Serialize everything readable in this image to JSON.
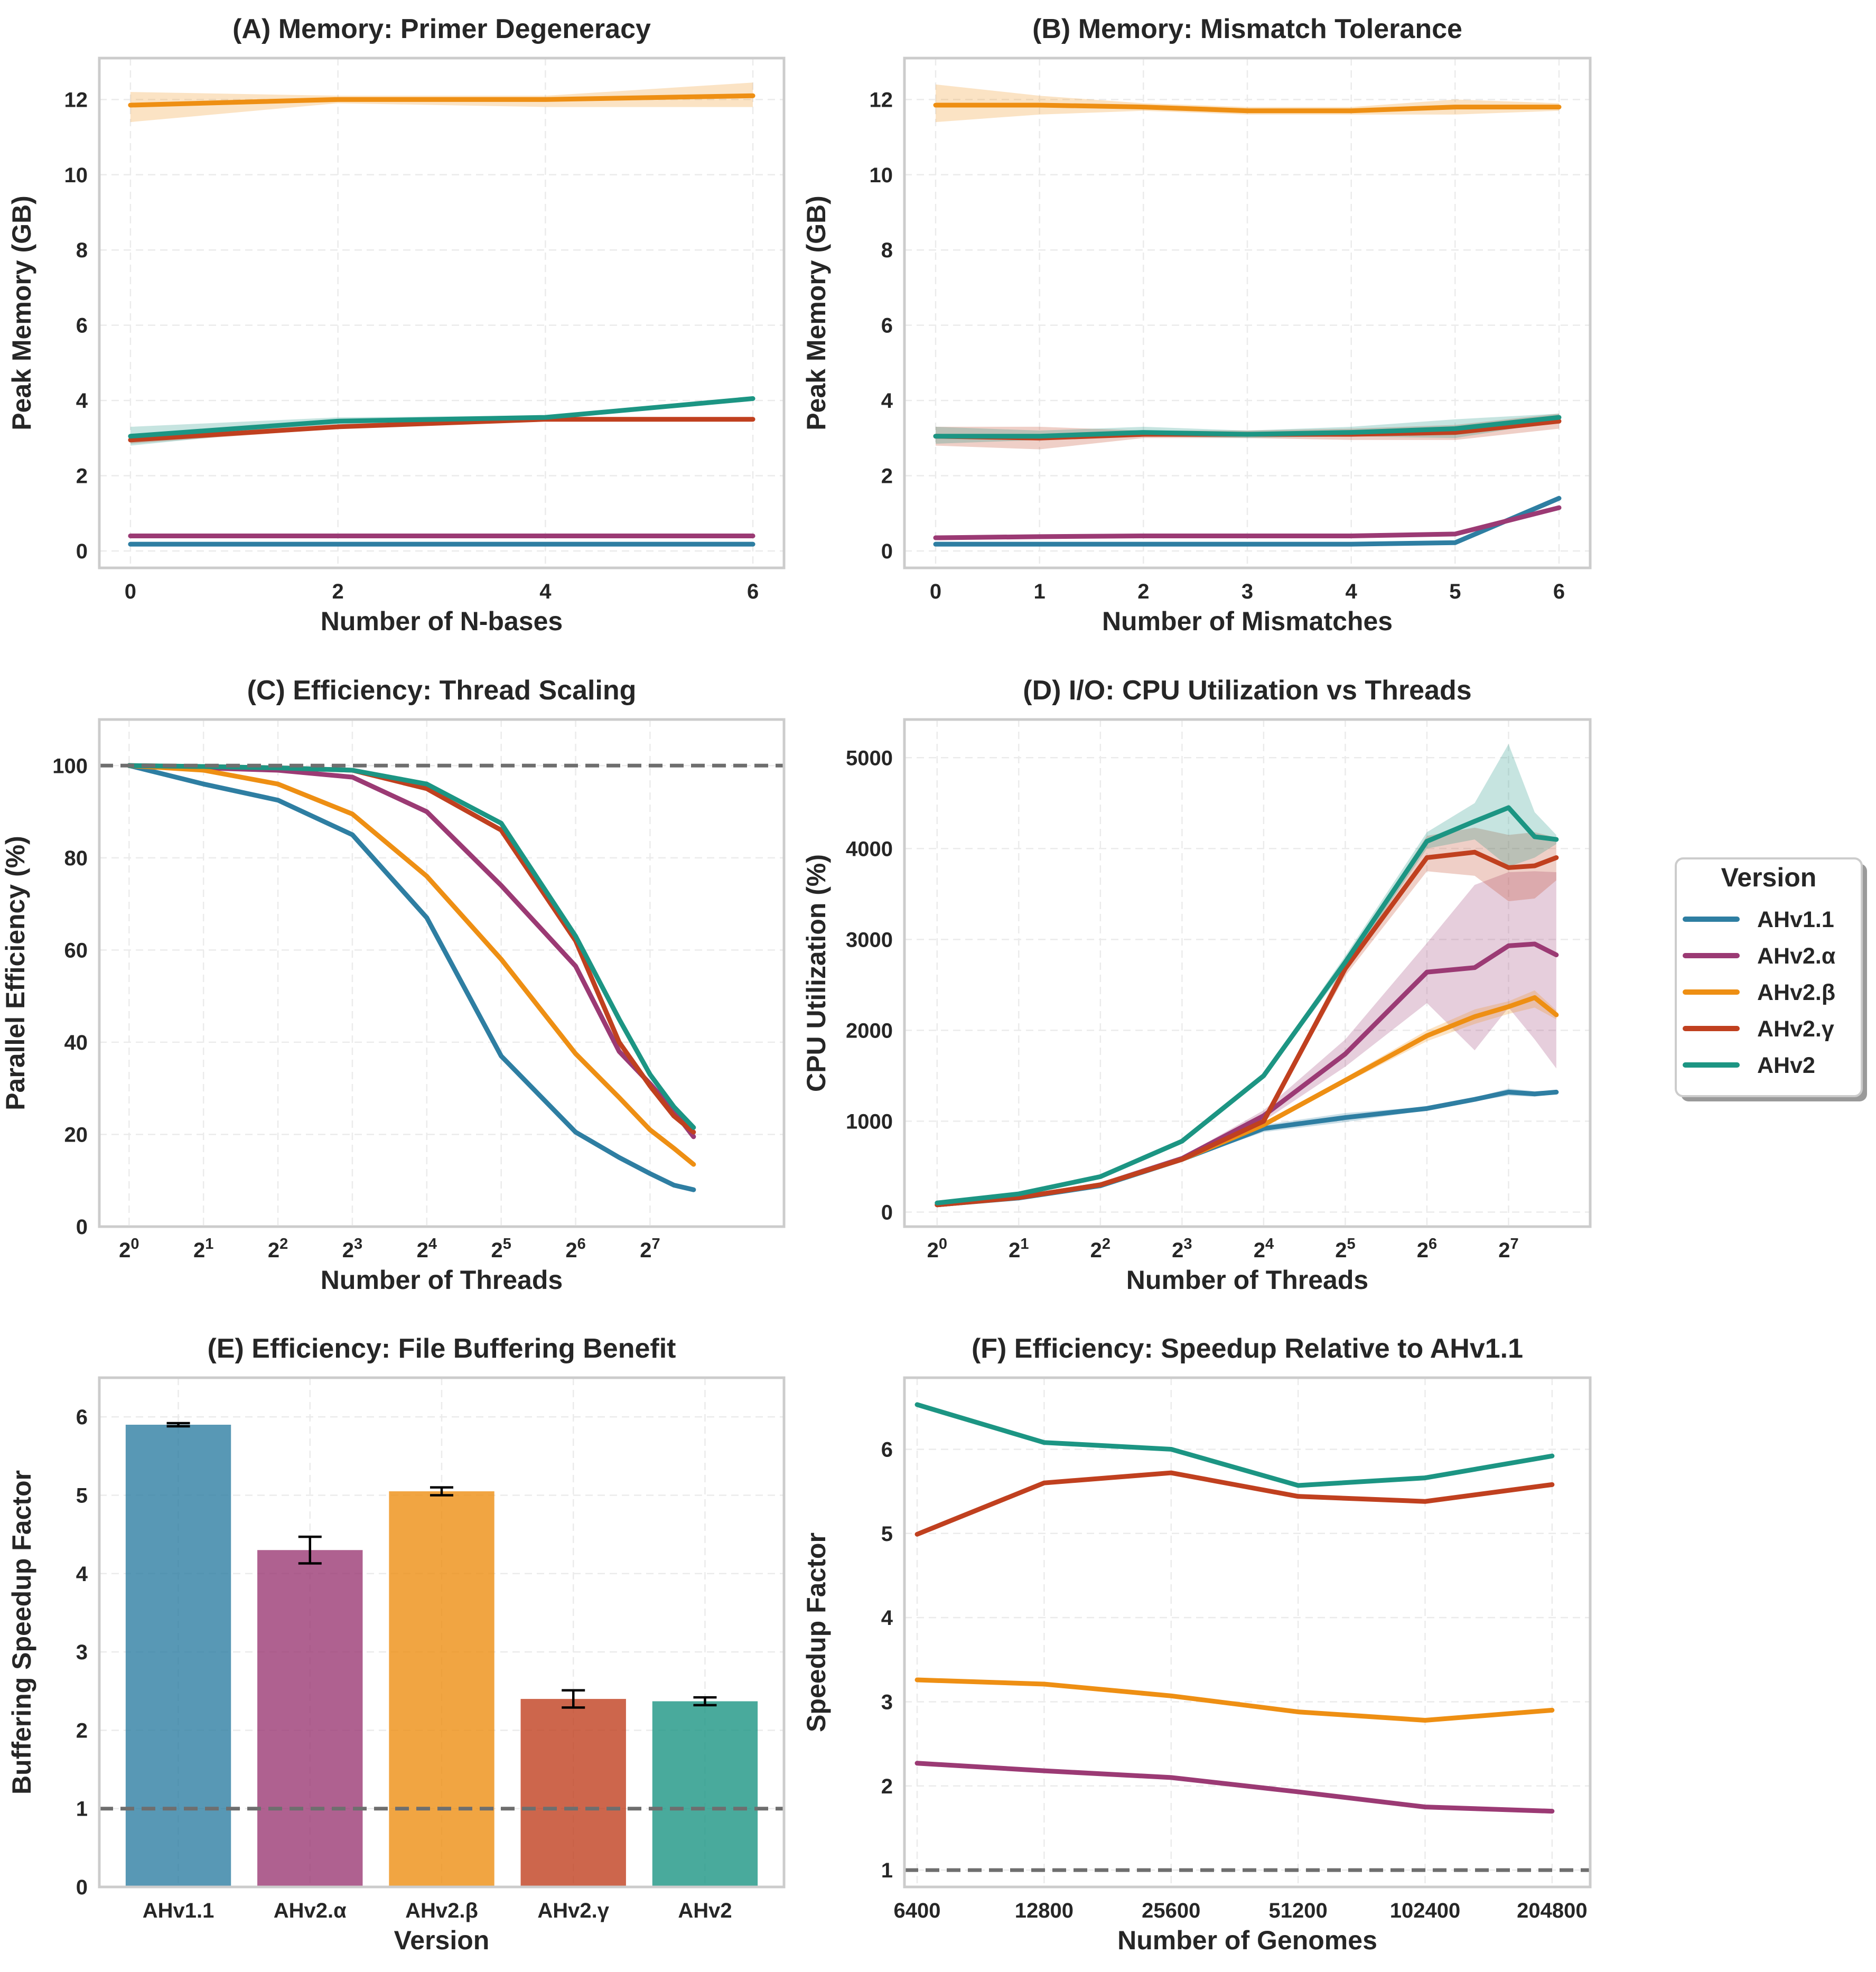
{
  "colors": {
    "AHv1.1": "#2e7ea2",
    "AHv2.α": "#9b3a74",
    "AHv2.β": "#ee8f13",
    "AHv2.γ": "#c0401f",
    "AHv2": "#1c9583"
  },
  "legend": {
    "title": "Version",
    "items": [
      "AHv1.1",
      "AHv2.α",
      "AHv2.β",
      "AHv2.γ",
      "AHv2"
    ]
  },
  "chart_data": [
    {
      "id": "A",
      "type": "line",
      "title": "(A) Memory: Primer Degeneracy",
      "xlabel": "Number of N-bases",
      "ylabel": "Peak Memory (GB)",
      "xlim": [
        -0.3,
        6.3
      ],
      "ylim": [
        -0.45,
        13.1
      ],
      "xticks": [
        0,
        2,
        4,
        6
      ],
      "xticklabels": [
        "0",
        "2",
        "4",
        "6"
      ],
      "yticks": [
        0,
        2,
        4,
        6,
        8,
        10,
        12
      ],
      "yticklabels": [
        "0",
        "2",
        "4",
        "6",
        "8",
        "10",
        "12"
      ],
      "x": [
        0,
        2,
        4,
        6
      ],
      "series": [
        {
          "name": "AHv1.1",
          "values": [
            0.18,
            0.18,
            0.18,
            0.18
          ],
          "lower": [
            0.16,
            0.16,
            0.16,
            0.16
          ],
          "upper": [
            0.2,
            0.2,
            0.2,
            0.2
          ]
        },
        {
          "name": "AHv2.α",
          "values": [
            0.4,
            0.4,
            0.4,
            0.4
          ],
          "lower": [
            0.37,
            0.37,
            0.37,
            0.37
          ],
          "upper": [
            0.43,
            0.43,
            0.43,
            0.43
          ]
        },
        {
          "name": "AHv2.β",
          "values": [
            11.85,
            12.0,
            12.0,
            12.1
          ],
          "lower": [
            11.4,
            11.9,
            11.8,
            11.8
          ],
          "upper": [
            12.2,
            12.1,
            12.1,
            12.45
          ]
        },
        {
          "name": "AHv2.γ",
          "values": [
            2.95,
            3.3,
            3.5,
            3.5
          ],
          "lower": [
            2.85,
            3.25,
            3.45,
            3.45
          ],
          "upper": [
            3.05,
            3.35,
            3.55,
            3.55
          ]
        },
        {
          "name": "AHv2",
          "values": [
            3.05,
            3.45,
            3.55,
            4.05
          ],
          "lower": [
            2.8,
            3.35,
            3.5,
            4.0
          ],
          "upper": [
            3.3,
            3.55,
            3.6,
            4.1
          ]
        }
      ]
    },
    {
      "id": "B",
      "type": "line",
      "title": "(B) Memory: Mismatch Tolerance",
      "xlabel": "Number of Mismatches",
      "ylabel": "Peak Memory (GB)",
      "xlim": [
        -0.3,
        6.3
      ],
      "ylim": [
        -0.45,
        13.1
      ],
      "xticks": [
        0,
        1,
        2,
        3,
        4,
        5,
        6
      ],
      "xticklabels": [
        "0",
        "1",
        "2",
        "3",
        "4",
        "5",
        "6"
      ],
      "yticks": [
        0,
        2,
        4,
        6,
        8,
        10,
        12
      ],
      "yticklabels": [
        "0",
        "2",
        "4",
        "6",
        "8",
        "10",
        "12"
      ],
      "x": [
        0,
        1,
        2,
        3,
        4,
        5,
        6
      ],
      "series": [
        {
          "name": "AHv1.1",
          "values": [
            0.18,
            0.18,
            0.18,
            0.18,
            0.18,
            0.22,
            1.4
          ],
          "lower": [
            0.16,
            0.16,
            0.16,
            0.16,
            0.16,
            0.2,
            1.35
          ],
          "upper": [
            0.2,
            0.2,
            0.2,
            0.2,
            0.2,
            0.25,
            1.45
          ]
        },
        {
          "name": "AHv2.α",
          "values": [
            0.35,
            0.38,
            0.4,
            0.4,
            0.4,
            0.45,
            1.15
          ],
          "lower": [
            0.33,
            0.36,
            0.38,
            0.38,
            0.38,
            0.43,
            1.1
          ],
          "upper": [
            0.37,
            0.4,
            0.42,
            0.42,
            0.42,
            0.47,
            1.2
          ]
        },
        {
          "name": "AHv2.β",
          "values": [
            11.85,
            11.85,
            11.8,
            11.7,
            11.7,
            11.8,
            11.8
          ],
          "lower": [
            11.4,
            11.6,
            11.7,
            11.6,
            11.6,
            11.6,
            11.7
          ],
          "upper": [
            12.4,
            12.1,
            11.9,
            11.8,
            11.8,
            12.0,
            11.9
          ]
        },
        {
          "name": "AHv2.γ",
          "values": [
            3.05,
            3.0,
            3.1,
            3.1,
            3.1,
            3.15,
            3.45
          ],
          "lower": [
            2.8,
            2.7,
            3.0,
            3.0,
            2.95,
            2.95,
            3.25
          ],
          "upper": [
            3.3,
            3.3,
            3.2,
            3.2,
            3.25,
            3.35,
            3.65
          ]
        },
        {
          "name": "AHv2",
          "values": [
            3.05,
            3.05,
            3.15,
            3.1,
            3.15,
            3.25,
            3.55
          ],
          "lower": [
            2.85,
            2.95,
            3.05,
            3.0,
            3.05,
            3.0,
            3.45
          ],
          "upper": [
            3.3,
            3.2,
            3.3,
            3.2,
            3.3,
            3.5,
            3.65
          ]
        }
      ]
    },
    {
      "id": "C",
      "type": "line",
      "title": "(C) Efficiency: Thread Scaling",
      "xlabel": "Number of Threads",
      "ylabel": "Parallel Efficiency (%)",
      "xscale": "log2",
      "xlim": [
        -0.4,
        8.8
      ],
      "ylim": [
        0,
        110
      ],
      "xticks": [
        0,
        1,
        2,
        3,
        4,
        5,
        6,
        7
      ],
      "xticklabels": [
        "2^0",
        "2^1",
        "2^2",
        "2^3",
        "2^4",
        "2^5",
        "2^6",
        "2^7"
      ],
      "yticks": [
        0,
        20,
        40,
        60,
        80,
        100
      ],
      "yticklabels": [
        "0",
        "20",
        "40",
        "60",
        "80",
        "100"
      ],
      "reference_line": 100,
      "x": [
        0,
        1,
        2,
        3,
        4,
        5,
        6,
        6.585,
        7,
        7.32,
        7.585
      ],
      "series": [
        {
          "name": "AHv1.1",
          "values": [
            100,
            96,
            92.5,
            85,
            67,
            37,
            20.5,
            15,
            11.5,
            9,
            8
          ]
        },
        {
          "name": "AHv2.α",
          "values": [
            100,
            99.5,
            99,
            97.5,
            90,
            74,
            56.5,
            38,
            31,
            25,
            19.5
          ]
        },
        {
          "name": "AHv2.β",
          "values": [
            100,
            99,
            96,
            89.5,
            76,
            58,
            37.5,
            28,
            21,
            17,
            13.5
          ]
        },
        {
          "name": "AHv2.γ",
          "values": [
            100,
            99.8,
            99.5,
            99,
            95,
            86,
            62,
            40,
            30.5,
            24,
            20.5
          ]
        },
        {
          "name": "AHv2",
          "values": [
            100,
            99.8,
            99.5,
            99,
            96,
            87.5,
            63,
            45,
            33,
            26,
            21.5
          ]
        }
      ]
    },
    {
      "id": "D",
      "type": "line",
      "title": "(D) I/O: CPU Utilization vs Threads",
      "xlabel": "Number of Threads",
      "ylabel": "CPU Utilization (%)",
      "xscale": "log2",
      "xlim": [
        -0.4,
        8.0
      ],
      "ylim": [
        -160,
        5420
      ],
      "xticks": [
        0,
        1,
        2,
        3,
        4,
        5,
        6,
        7
      ],
      "xticklabels": [
        "2^0",
        "2^1",
        "2^2",
        "2^3",
        "2^4",
        "2^5",
        "2^6",
        "2^7"
      ],
      "yticks": [
        0,
        1000,
        2000,
        3000,
        4000,
        5000
      ],
      "yticklabels": [
        "0",
        "1000",
        "2000",
        "3000",
        "4000",
        "5000"
      ],
      "x": [
        0,
        1,
        2,
        3,
        4,
        5,
        6,
        6.585,
        7,
        7.32,
        7.585
      ],
      "series": [
        {
          "name": "AHv1.1",
          "values": [
            80,
            155,
            290,
            580,
            920,
            1040,
            1140,
            1240,
            1320,
            1300,
            1320
          ],
          "lower": [
            75,
            150,
            280,
            570,
            880,
            990,
            1120,
            1220,
            1280,
            1270,
            1300
          ],
          "upper": [
            85,
            160,
            300,
            590,
            960,
            1090,
            1160,
            1260,
            1360,
            1330,
            1340
          ]
        },
        {
          "name": "AHv2.α",
          "values": [
            80,
            160,
            300,
            590,
            1060,
            1740,
            2640,
            2690,
            2930,
            2950,
            2830
          ],
          "lower": [
            75,
            155,
            290,
            570,
            1000,
            1600,
            2300,
            1780,
            2250,
            1900,
            1580
          ],
          "upper": [
            85,
            165,
            310,
            610,
            1120,
            1900,
            2960,
            3600,
            3740,
            3750,
            3740
          ]
        },
        {
          "name": "AHv2.β",
          "values": [
            80,
            160,
            300,
            580,
            960,
            1450,
            1940,
            2150,
            2260,
            2360,
            2170
          ],
          "lower": [
            75,
            155,
            290,
            570,
            930,
            1420,
            1880,
            2070,
            2180,
            2250,
            2120
          ],
          "upper": [
            85,
            165,
            310,
            590,
            990,
            1480,
            2000,
            2230,
            2320,
            2440,
            2220
          ]
        },
        {
          "name": "AHv2.γ",
          "values": [
            80,
            160,
            300,
            580,
            1000,
            2680,
            3900,
            3960,
            3790,
            3810,
            3900
          ],
          "lower": [
            75,
            155,
            290,
            570,
            980,
            2600,
            3750,
            3700,
            3420,
            3450,
            3650
          ],
          "upper": [
            85,
            165,
            310,
            590,
            1020,
            2760,
            4140,
            4230,
            4150,
            4180,
            4120
          ]
        },
        {
          "name": "AHv2",
          "values": [
            100,
            200,
            390,
            780,
            1500,
            2750,
            4080,
            4300,
            4450,
            4130,
            4100
          ],
          "lower": [
            95,
            195,
            380,
            770,
            1480,
            2680,
            4000,
            4100,
            3800,
            3900,
            4050
          ],
          "upper": [
            105,
            205,
            400,
            790,
            1520,
            2820,
            4180,
            4500,
            5150,
            4400,
            4150
          ]
        }
      ]
    },
    {
      "id": "E",
      "type": "bar",
      "title": "(E) Efficiency: File Buffering Benefit",
      "xlabel": "Version",
      "ylabel": "Buffering Speedup Factor",
      "ylim": [
        0,
        6.5
      ],
      "yticks": [
        0,
        1,
        2,
        3,
        4,
        5,
        6
      ],
      "yticklabels": [
        "0",
        "1",
        "2",
        "3",
        "4",
        "5",
        "6"
      ],
      "reference_line": 1,
      "categories": [
        "AHv1.1",
        "AHv2.α",
        "AHv2.β",
        "AHv2.γ",
        "AHv2"
      ],
      "values": [
        5.9,
        4.3,
        5.05,
        2.4,
        2.37
      ],
      "errors": [
        0.02,
        0.17,
        0.05,
        0.11,
        0.05
      ]
    },
    {
      "id": "F",
      "type": "line",
      "title": "(F) Efficiency: Speedup Relative to AHv1.1",
      "xlabel": "Number of Genomes",
      "ylabel": "Speedup Factor",
      "xscale": "log2",
      "xlim": [
        -0.1,
        5.3
      ],
      "ylim": [
        0.8,
        6.85
      ],
      "xticks": [
        0,
        1,
        2,
        3,
        4,
        5
      ],
      "xticklabels": [
        "6400",
        "12800",
        "25600",
        "51200",
        "102400",
        "204800"
      ],
      "yticks": [
        1,
        2,
        3,
        4,
        5,
        6
      ],
      "yticklabels": [
        "1",
        "2",
        "3",
        "4",
        "5",
        "6"
      ],
      "reference_line": 1,
      "x": [
        0,
        1,
        2,
        3,
        4,
        5
      ],
      "series": [
        {
          "name": "AHv2.α",
          "values": [
            2.27,
            2.18,
            2.1,
            1.93,
            1.75,
            1.7
          ]
        },
        {
          "name": "AHv2.β",
          "values": [
            3.26,
            3.21,
            3.07,
            2.88,
            2.78,
            2.9
          ]
        },
        {
          "name": "AHv2.γ",
          "values": [
            4.99,
            5.6,
            5.72,
            5.44,
            5.38,
            5.58
          ]
        },
        {
          "name": "AHv2",
          "values": [
            6.53,
            6.08,
            6.0,
            5.57,
            5.66,
            5.92
          ]
        }
      ]
    }
  ]
}
